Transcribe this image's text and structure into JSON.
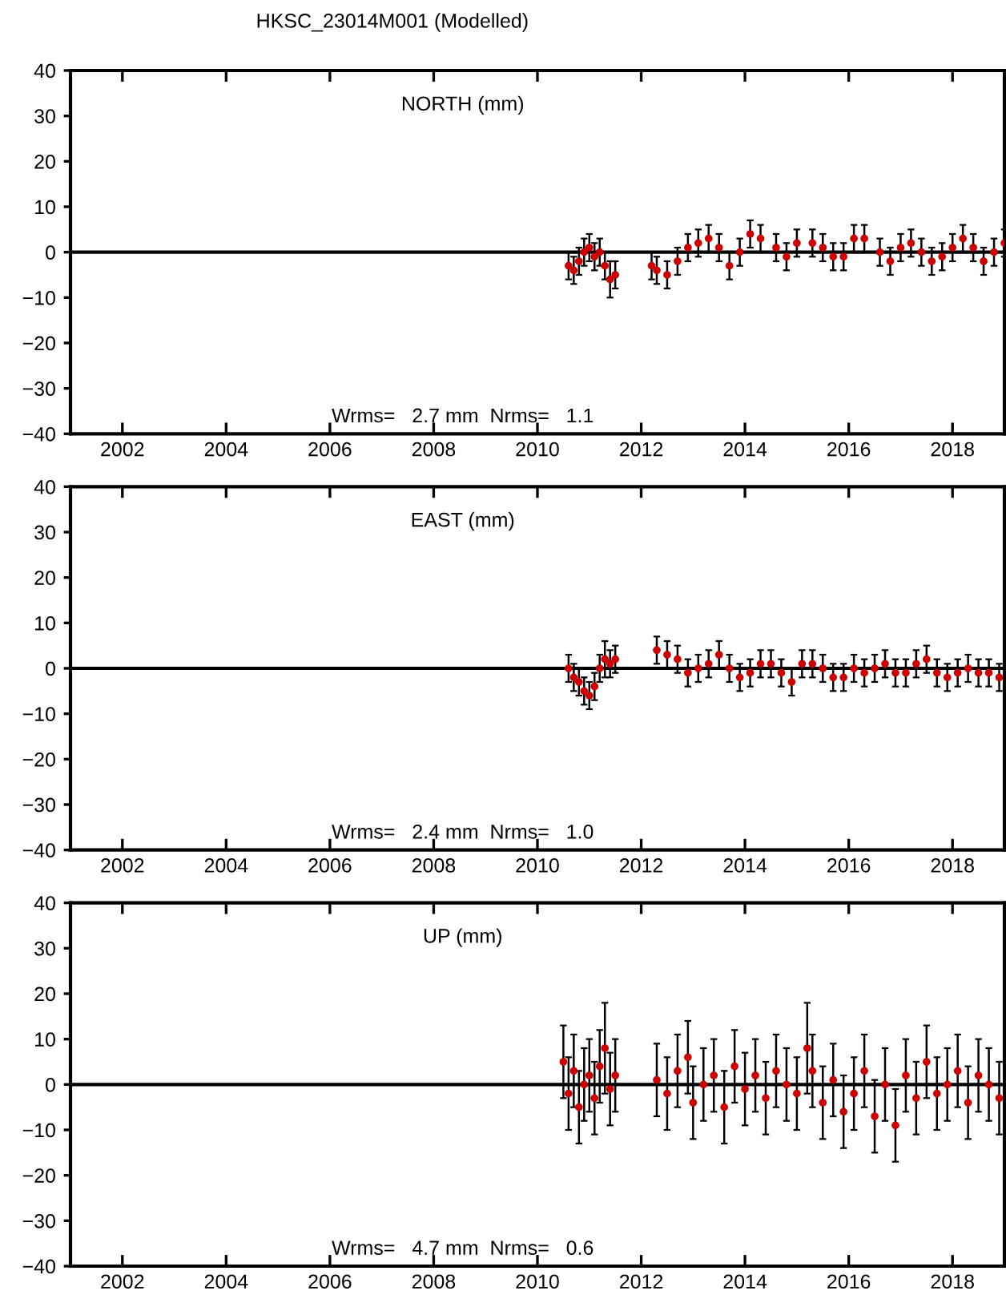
{
  "chart_data": [
    {
      "type": "scatter",
      "title": "HKSC_23014M001 (Modelled)",
      "annotations": [
        "NORTH (mm)",
        "Wrms=   2.7 mm  Nrms=   1.1"
      ],
      "series": [
        {
          "color": "#cc0000",
          "x": [
            2010.6,
            2010.7,
            2010.8,
            2010.9,
            2011.0,
            2011.1,
            2011.2,
            2011.3,
            2011.4,
            2011.5,
            2012.2,
            2012.3,
            2012.5,
            2012.7,
            2012.9,
            2013.1,
            2013.3,
            2013.5,
            2013.7,
            2013.9,
            2014.1,
            2014.3,
            2014.6,
            2014.8,
            2015.0,
            2015.3,
            2015.5,
            2015.7,
            2015.9,
            2016.1,
            2016.3,
            2016.6,
            2016.8,
            2017.0,
            2017.2,
            2017.4,
            2017.6,
            2017.8,
            2018.0,
            2018.2,
            2018.4,
            2018.6,
            2018.8,
            2019.0
          ],
          "values": [
            -3,
            -4,
            -2,
            0,
            1,
            -1,
            0,
            -3,
            -6,
            -5,
            -3,
            -4,
            -5,
            -2,
            1,
            2,
            3,
            1,
            -3,
            0,
            4,
            3,
            1,
            -1,
            2,
            2,
            1,
            -1,
            -1,
            3,
            3,
            0,
            -2,
            1,
            2,
            0,
            -2,
            -1,
            1,
            3,
            1,
            -2,
            0,
            2
          ],
          "errors": [
            3,
            3,
            3,
            3,
            3,
            3,
            3,
            3,
            4,
            3,
            3,
            3,
            3,
            3,
            3,
            3,
            3,
            3,
            3,
            3,
            3,
            3,
            3,
            3,
            3,
            3,
            3,
            3,
            3,
            3,
            3,
            3,
            3,
            3,
            3,
            3,
            3,
            3,
            3,
            3,
            3,
            3,
            3,
            3
          ]
        }
      ],
      "marker": "circle",
      "xlim": [
        2001,
        2019
      ],
      "ylim": [
        -40,
        40
      ],
      "xticks": [
        2002,
        2004,
        2006,
        2008,
        2010,
        2012,
        2014,
        2016,
        2018
      ],
      "yticks": [
        -40,
        -30,
        -20,
        -10,
        0,
        10,
        20,
        30,
        40
      ],
      "ref_lines": [
        {
          "axis": "y",
          "value": 0,
          "label": null,
          "color": "#000000"
        }
      ],
      "grid": false
    },
    {
      "type": "scatter",
      "annotations": [
        "EAST (mm)",
        "Wrms=   2.4 mm  Nrms=   1.0"
      ],
      "series": [
        {
          "color": "#cc0000",
          "x": [
            2010.6,
            2010.7,
            2010.8,
            2010.9,
            2011.0,
            2011.1,
            2011.2,
            2011.3,
            2011.4,
            2011.5,
            2012.3,
            2012.5,
            2012.7,
            2012.9,
            2013.1,
            2013.3,
            2013.5,
            2013.7,
            2013.9,
            2014.1,
            2014.3,
            2014.5,
            2014.7,
            2014.9,
            2015.1,
            2015.3,
            2015.5,
            2015.7,
            2015.9,
            2016.1,
            2016.3,
            2016.5,
            2016.7,
            2016.9,
            2017.1,
            2017.3,
            2017.5,
            2017.7,
            2017.9,
            2018.1,
            2018.3,
            2018.5,
            2018.7,
            2018.9
          ],
          "values": [
            0,
            -2,
            -3,
            -5,
            -6,
            -4,
            0,
            2,
            1,
            2,
            4,
            3,
            2,
            -1,
            0,
            1,
            3,
            0,
            -2,
            -1,
            1,
            1,
            -1,
            -3,
            1,
            1,
            0,
            -2,
            -2,
            0,
            -1,
            0,
            1,
            -1,
            -1,
            1,
            2,
            -1,
            -2,
            -1,
            0,
            -1,
            -1,
            -2
          ],
          "errors": [
            3,
            3,
            3,
            3,
            3,
            3,
            3,
            4,
            3,
            3,
            3,
            3,
            3,
            3,
            3,
            3,
            3,
            3,
            3,
            3,
            3,
            3,
            3,
            3,
            3,
            3,
            3,
            3,
            3,
            3,
            3,
            3,
            3,
            3,
            3,
            3,
            3,
            3,
            3,
            3,
            3,
            3,
            3,
            3
          ]
        }
      ],
      "marker": "circle",
      "xlim": [
        2001,
        2019
      ],
      "ylim": [
        -40,
        40
      ],
      "xticks": [
        2002,
        2004,
        2006,
        2008,
        2010,
        2012,
        2014,
        2016,
        2018
      ],
      "yticks": [
        -40,
        -30,
        -20,
        -10,
        0,
        10,
        20,
        30,
        40
      ],
      "ref_lines": [
        {
          "axis": "y",
          "value": 0,
          "label": null,
          "color": "#000000"
        }
      ],
      "grid": false
    },
    {
      "type": "scatter",
      "annotations": [
        "UP (mm)",
        "Wrms=   4.7 mm  Nrms=   0.6"
      ],
      "series": [
        {
          "color": "#cc0000",
          "x": [
            2010.5,
            2010.6,
            2010.7,
            2010.8,
            2010.9,
            2011.0,
            2011.1,
            2011.2,
            2011.3,
            2011.4,
            2011.5,
            2012.3,
            2012.5,
            2012.7,
            2012.9,
            2013.0,
            2013.2,
            2013.4,
            2013.6,
            2013.8,
            2014.0,
            2014.2,
            2014.4,
            2014.6,
            2014.8,
            2015.0,
            2015.2,
            2015.3,
            2015.5,
            2015.7,
            2015.9,
            2016.1,
            2016.3,
            2016.5,
            2016.7,
            2016.9,
            2017.1,
            2017.3,
            2017.5,
            2017.7,
            2017.9,
            2018.1,
            2018.3,
            2018.5,
            2018.7,
            2018.9
          ],
          "values": [
            5,
            -2,
            3,
            -5,
            0,
            2,
            -3,
            4,
            8,
            -1,
            2,
            1,
            -2,
            3,
            6,
            -4,
            0,
            2,
            -5,
            4,
            -1,
            2,
            -3,
            3,
            0,
            -2,
            8,
            3,
            -4,
            1,
            -6,
            -2,
            3,
            -7,
            0,
            -9,
            2,
            -3,
            5,
            -2,
            0,
            3,
            -4,
            2,
            0,
            -3
          ],
          "errors": [
            8,
            8,
            8,
            8,
            8,
            8,
            8,
            8,
            10,
            8,
            8,
            8,
            8,
            8,
            8,
            8,
            8,
            8,
            8,
            8,
            8,
            8,
            8,
            8,
            8,
            8,
            10,
            8,
            8,
            8,
            8,
            8,
            8,
            8,
            8,
            8,
            8,
            8,
            8,
            8,
            8,
            8,
            8,
            8,
            8,
            8
          ]
        }
      ],
      "marker": "circle",
      "xlim": [
        2001,
        2019
      ],
      "ylim": [
        -40,
        40
      ],
      "xticks": [
        2002,
        2004,
        2006,
        2008,
        2010,
        2012,
        2014,
        2016,
        2018
      ],
      "yticks": [
        -40,
        -30,
        -20,
        -10,
        0,
        10,
        20,
        30,
        40
      ],
      "ref_lines": [
        {
          "axis": "y",
          "value": 0,
          "label": null,
          "color": "#000000"
        }
      ],
      "grid": false
    }
  ]
}
